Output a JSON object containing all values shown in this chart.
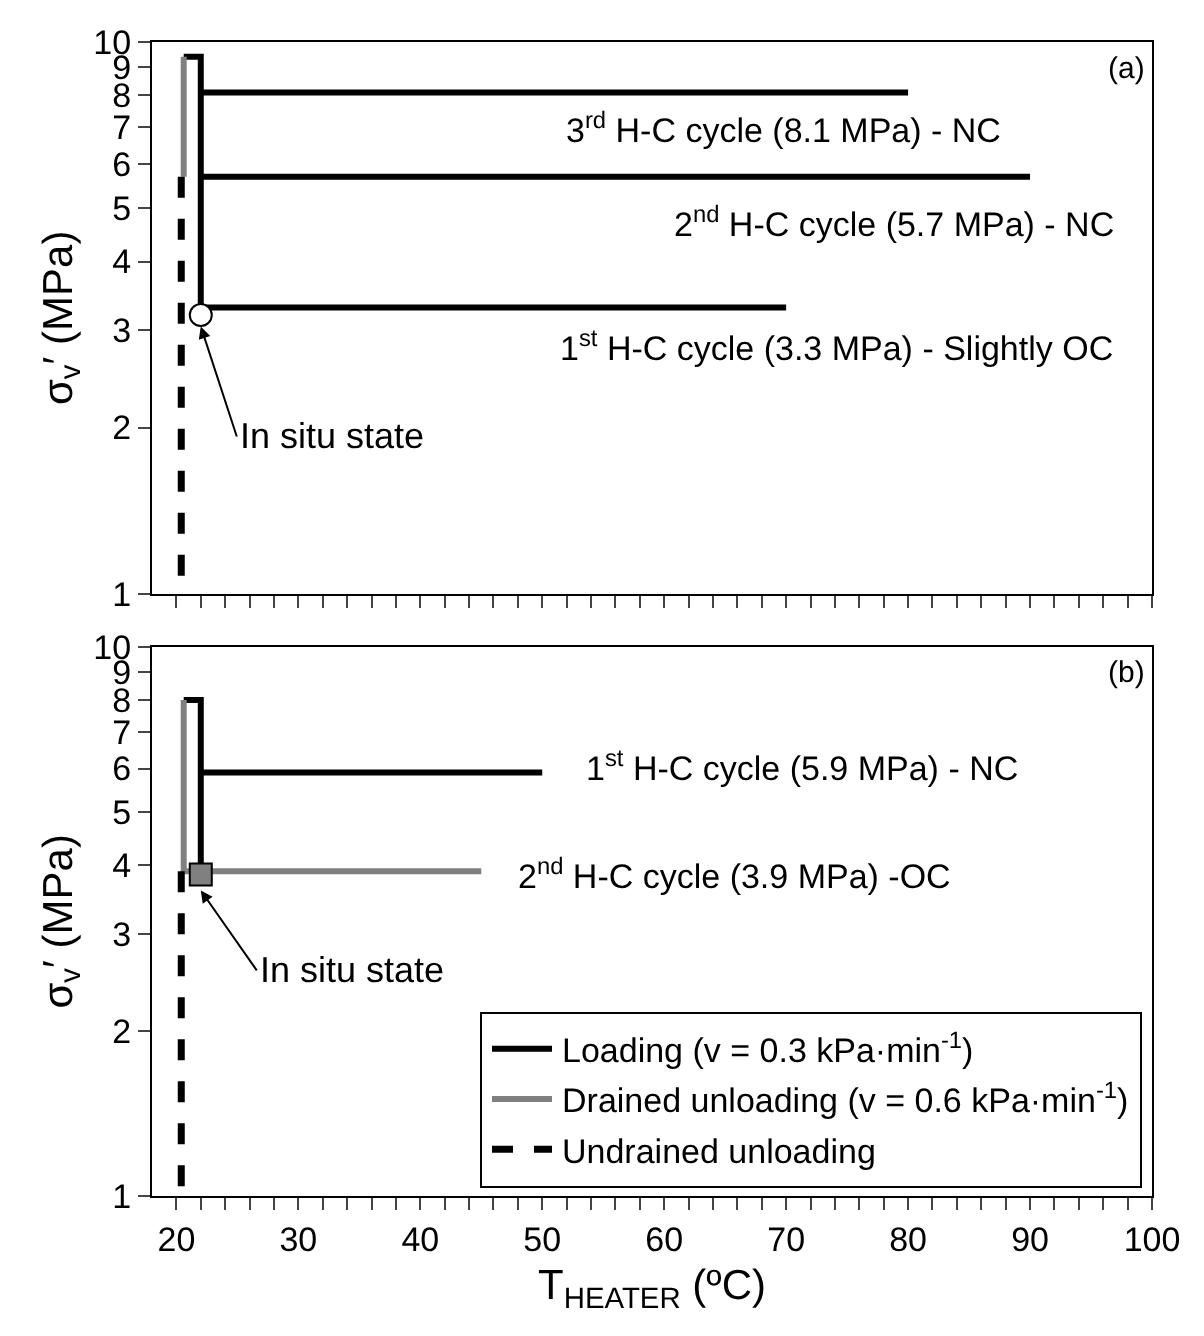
{
  "chart_data": [
    {
      "type": "line",
      "ylabel": "σ$_{v}$′ (MPa)",
      "log": "y",
      "xlim": [
        18,
        100
      ],
      "ylim": [
        1,
        10
      ],
      "xticks": [
        {
          "value": 20,
          "label": null
        },
        {
          "value": 22,
          "label": null
        },
        {
          "value": 24,
          "label": null
        },
        {
          "value": 26,
          "label": null
        },
        {
          "value": 28,
          "label": null
        },
        {
          "value": 30,
          "label": null
        },
        {
          "value": 32,
          "label": null
        },
        {
          "value": 34,
          "label": null
        },
        {
          "value": 36,
          "label": null
        },
        {
          "value": 38,
          "label": null
        },
        {
          "value": 40,
          "label": null
        },
        {
          "value": 42,
          "label": null
        },
        {
          "value": 44,
          "label": null
        },
        {
          "value": 46,
          "label": null
        },
        {
          "value": 48,
          "label": null
        },
        {
          "value": 50,
          "label": null
        },
        {
          "value": 52,
          "label": null
        },
        {
          "value": 54,
          "label": null
        },
        {
          "value": 56,
          "label": null
        },
        {
          "value": 58,
          "label": null
        },
        {
          "value": 60,
          "label": null
        },
        {
          "value": 62,
          "label": null
        },
        {
          "value": 64,
          "label": null
        },
        {
          "value": 66,
          "label": null
        },
        {
          "value": 68,
          "label": null
        },
        {
          "value": 70,
          "label": null
        },
        {
          "value": 72,
          "label": null
        },
        {
          "value": 74,
          "label": null
        },
        {
          "value": 76,
          "label": null
        },
        {
          "value": 78,
          "label": null
        },
        {
          "value": 80,
          "label": null
        },
        {
          "value": 82,
          "label": null
        },
        {
          "value": 84,
          "label": null
        },
        {
          "value": 86,
          "label": null
        },
        {
          "value": 88,
          "label": null
        },
        {
          "value": 90,
          "label": null
        },
        {
          "value": 92,
          "label": null
        },
        {
          "value": 94,
          "label": null
        },
        {
          "value": 96,
          "label": null
        },
        {
          "value": 98,
          "label": null
        },
        {
          "value": 100,
          "label": null
        }
      ],
      "yticks": [
        1,
        2,
        3,
        4,
        5,
        6,
        7,
        8,
        9,
        10
      ],
      "tick_labels": "y",
      "legend": false,
      "series": [
        {
          "color": "#000000",
          "line_style": "solid",
          "x": [
            22,
            22,
            70,
            22,
            22,
            90,
            22,
            22,
            80,
            22,
            22,
            20.6
          ],
          "values": [
            3.2,
            3.3,
            3.3,
            3.3,
            5.7,
            5.7,
            5.7,
            8.1,
            8.1,
            8.1,
            9.4,
            9.4
          ]
        },
        {
          "color": "#808080",
          "line_style": "solid",
          "x": [
            20.6,
            20.6
          ],
          "values": [
            9.4,
            5.7
          ]
        },
        {
          "color": "#000000",
          "line_style": "dashed",
          "x": [
            20.4,
            20.4
          ],
          "values": [
            5.7,
            1
          ]
        },
        {
          "type": "scatter",
          "color": "#ffffff",
          "marker": "circle",
          "x": [
            22
          ],
          "values": [
            3.2
          ]
        }
      ],
      "annotations": [
        "(a)",
        "3$^{rd}$ H-C cycle (8.1 MPa) - NC",
        "2$^{nd}$ H-C cycle (5.7 MPa) - NC",
        "1$^{st}$ H-C cycle (3.3 MPa) - Slightly OC",
        {
          "text": "In situ state",
          "x": 22,
          "y": 3.05
        }
      ]
    },
    {
      "type": "line",
      "xlabel": "T$_{HEATER}$ (ºC)",
      "ylabel": "σ$_{v}$′ (MPa)",
      "log": "y",
      "xlim": [
        18,
        100
      ],
      "ylim": [
        1,
        10
      ],
      "xticks": [
        20,
        {
          "value": 22,
          "label": null
        },
        {
          "value": 24,
          "label": null
        },
        {
          "value": 26,
          "label": null
        },
        {
          "value": 28,
          "label": null
        },
        30,
        {
          "value": 32,
          "label": null
        },
        {
          "value": 34,
          "label": null
        },
        {
          "value": 36,
          "label": null
        },
        {
          "value": 38,
          "label": null
        },
        40,
        {
          "value": 42,
          "label": null
        },
        {
          "value": 44,
          "label": null
        },
        {
          "value": 46,
          "label": null
        },
        {
          "value": 48,
          "label": null
        },
        50,
        {
          "value": 52,
          "label": null
        },
        {
          "value": 54,
          "label": null
        },
        {
          "value": 56,
          "label": null
        },
        {
          "value": 58,
          "label": null
        },
        60,
        {
          "value": 62,
          "label": null
        },
        {
          "value": 64,
          "label": null
        },
        {
          "value": 66,
          "label": null
        },
        {
          "value": 68,
          "label": null
        },
        70,
        {
          "value": 72,
          "label": null
        },
        {
          "value": 74,
          "label": null
        },
        {
          "value": 76,
          "label": null
        },
        {
          "value": 78,
          "label": null
        },
        80,
        {
          "value": 82,
          "label": null
        },
        {
          "value": 84,
          "label": null
        },
        {
          "value": 86,
          "label": null
        },
        {
          "value": 88,
          "label": null
        },
        90,
        {
          "value": 92,
          "label": null
        },
        {
          "value": 94,
          "label": null
        },
        {
          "value": 96,
          "label": null
        },
        {
          "value": 98,
          "label": null
        },
        100
      ],
      "yticks": [
        1,
        2,
        3,
        4,
        5,
        6,
        7,
        8,
        9,
        10
      ],
      "legend": "bottom right",
      "series": [
        {
          "name": "Loading (v = 0.3 kPa·min$^{-1}$)",
          "color": "#000000",
          "line_style": "solid",
          "x": [
            22,
            22,
            50,
            22,
            22,
            20.6
          ],
          "values": [
            3.85,
            5.9,
            5.9,
            5.9,
            8,
            8
          ]
        },
        {
          "name": "Drained unloading (v = 0.6 kPa·min$^{-1}$)",
          "color": "#808080",
          "line_style": "solid",
          "x": [
            20.6,
            20.6,
            45
          ],
          "values": [
            8,
            3.9,
            3.9
          ]
        },
        {
          "name": "Undrained unloading",
          "color": "#000000",
          "line_style": "dashed",
          "x": [
            20.4,
            20.4
          ],
          "values": [
            3.9,
            1
          ]
        },
        {
          "type": "scatter",
          "color": "#808080",
          "marker": "square",
          "x": [
            22
          ],
          "values": [
            3.85
          ]
        }
      ],
      "annotations": [
        "(b)",
        "1$^{st}$ H-C cycle (5.9 MPa) - NC",
        "2$^{nd}$ H-C cycle (3.9 MPa) -OC",
        {
          "text": "In situ state",
          "x": 22,
          "y": 3.6
        }
      ]
    }
  ]
}
